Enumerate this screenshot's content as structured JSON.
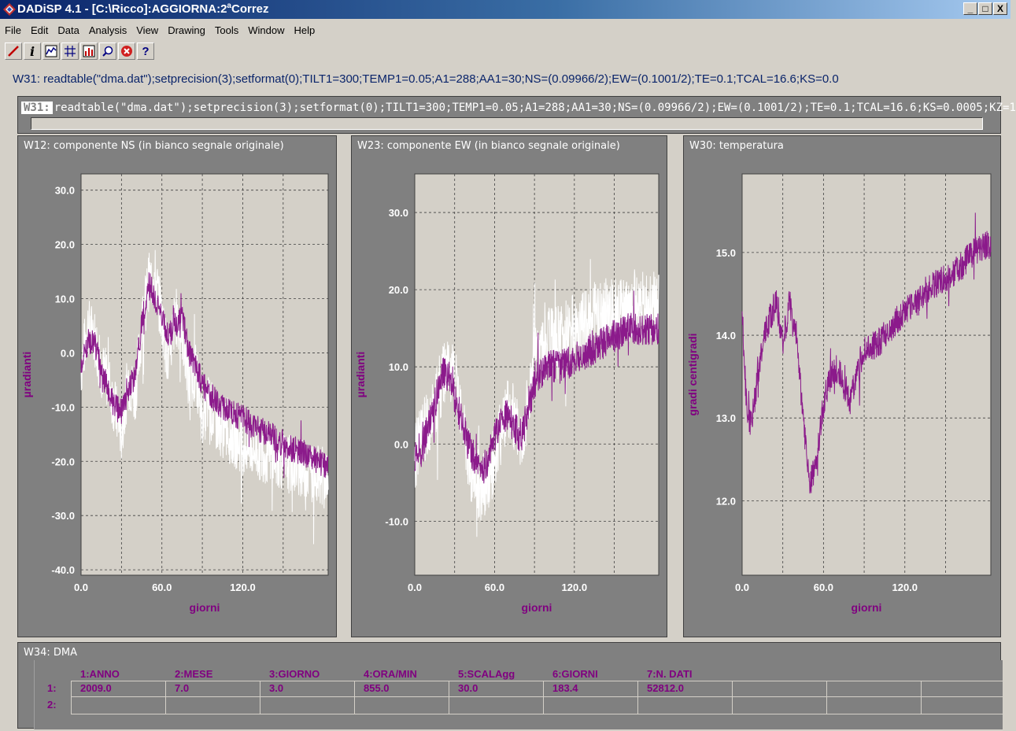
{
  "window": {
    "title": "DADiSP 4.1 - [C:\\Ricco]:AGGIORNA:2",
    "title_sup": "a",
    "title_suffix": "Correz",
    "btn_min": "_",
    "btn_max": "□",
    "btn_close": "X"
  },
  "menu": [
    "File",
    "Edit",
    "Data",
    "Analysis",
    "View",
    "Drawing",
    "Tools",
    "Window",
    "Help"
  ],
  "toolbar": {
    "icons": [
      "pencil-icon",
      "info-icon",
      "line-plot-icon",
      "grid-icon",
      "bar-chart-icon",
      "zoom-icon",
      "stop-icon",
      "help-icon"
    ],
    "info_glyph": "i",
    "help_glyph": "?"
  },
  "formula_bar": "W31: readtable(\"dma.dat\");setprecision(3);setformat(0);TILT1=300;TEMP1=0.05;A1=288;AA1=30;NS=(0.09966/2);EW=(0.1001/2);TE=0.1;TCAL=16.6;KS=0.0",
  "command": {
    "label": "W31:",
    "text": "readtable(\"dma.dat\");setprecision(3);setformat(0);TILT1=300;TEMP1=0.05;A1=288;AA1=30;NS=(0.09966/2);EW=(0.1001/2);TE=0.1;TCAL=16.6;KS=0.0005;KZ=1"
  },
  "colors": {
    "series_purple": "#8b1a8b",
    "series_white": "#ffffff",
    "plot_bg": "#d4d0c8",
    "label_purple": "#800080",
    "window_gray": "#808080"
  },
  "chart_data": [
    {
      "type": "line",
      "window_title": "W12: componente NS (in bianco segnale originale)",
      "xlabel": "giorni",
      "ylabel": "µradianti",
      "xlim": [
        0,
        183.4
      ],
      "ylim": [
        -41,
        33
      ],
      "x_ticks": [
        "0.0",
        "60.0",
        "120.0"
      ],
      "x_tick_values": [
        0,
        60,
        120
      ],
      "y_ticks": [
        "30.0",
        "20.0",
        "10.0",
        "0.0",
        "-10.0",
        "-20.0",
        "-30.0",
        "-40.0"
      ],
      "y_tick_values": [
        30,
        20,
        10,
        0,
        -10,
        -20,
        -30,
        -40
      ],
      "grid": true,
      "series": [
        {
          "color": "white",
          "noise": 5.5,
          "x": [
            0,
            5,
            10,
            15,
            20,
            25,
            30,
            35,
            40,
            45,
            50,
            55,
            60,
            65,
            70,
            75,
            80,
            85,
            90,
            95,
            100,
            110,
            120,
            130,
            140,
            150,
            160,
            170,
            183
          ],
          "y": [
            -3,
            5,
            3,
            -3,
            -5,
            -10,
            -15,
            -5,
            -8,
            5,
            13,
            14,
            6,
            -2,
            7,
            4,
            -6,
            -3,
            -12,
            -9,
            -13,
            -15,
            -17,
            -18,
            -19,
            -20,
            -21,
            -22,
            -23
          ]
        },
        {
          "color": "purple",
          "noise": 2.5,
          "x": [
            0,
            5,
            10,
            15,
            20,
            25,
            30,
            35,
            40,
            45,
            50,
            55,
            60,
            65,
            70,
            75,
            80,
            85,
            90,
            95,
            100,
            110,
            120,
            130,
            140,
            150,
            160,
            170,
            183
          ],
          "y": [
            -2,
            2,
            2,
            -3,
            -7,
            -10,
            -11,
            -7,
            -4,
            5,
            13,
            10,
            6,
            3,
            5,
            7,
            0,
            -2,
            -6,
            -7,
            -9,
            -11,
            -12,
            -14,
            -15,
            -17,
            -18,
            -19,
            -21
          ]
        }
      ]
    },
    {
      "type": "line",
      "window_title": "W23: componente EW (in bianco segnale originale)",
      "xlabel": "giorni",
      "ylabel": "µradianti",
      "xlim": [
        0,
        183.4
      ],
      "ylim": [
        -17,
        35
      ],
      "x_ticks": [
        "0.0",
        "60.0",
        "120.0"
      ],
      "x_tick_values": [
        0,
        60,
        120
      ],
      "y_ticks": [
        "30.0",
        "20.0",
        "10.0",
        "0.0",
        "-10.0"
      ],
      "y_tick_values": [
        30,
        20,
        10,
        0,
        -10
      ],
      "grid": true,
      "series": [
        {
          "color": "white",
          "noise": 4.5,
          "x": [
            0,
            5,
            10,
            15,
            20,
            25,
            30,
            35,
            40,
            45,
            50,
            55,
            60,
            65,
            70,
            75,
            80,
            85,
            90,
            100,
            110,
            120,
            130,
            140,
            150,
            160,
            170,
            183
          ],
          "y": [
            -2,
            1,
            3,
            5,
            8,
            10,
            8,
            5,
            -2,
            -4,
            -6,
            -4,
            -2,
            2,
            5,
            3,
            1,
            5,
            11,
            13,
            14,
            15,
            16,
            17,
            17,
            17,
            18,
            18
          ]
        },
        {
          "color": "purple",
          "noise": 2.2,
          "x": [
            0,
            5,
            10,
            15,
            20,
            25,
            30,
            35,
            40,
            45,
            50,
            55,
            60,
            65,
            70,
            75,
            80,
            85,
            90,
            100,
            110,
            120,
            130,
            140,
            150,
            160,
            170,
            183
          ],
          "y": [
            -2,
            -1,
            2,
            5,
            9,
            9,
            6,
            3,
            0,
            -2,
            -4,
            -2,
            1,
            3,
            4,
            2,
            1,
            4,
            8,
            10,
            10,
            11,
            12,
            13,
            14,
            15,
            15,
            15
          ]
        }
      ]
    },
    {
      "type": "line",
      "window_title": "W30: temperatura",
      "xlabel": "giorni",
      "ylabel": "gradi centigradi",
      "xlim": [
        0,
        183.4
      ],
      "ylim": [
        11.1,
        15.95
      ],
      "x_ticks": [
        "0.0",
        "60.0",
        "120.0"
      ],
      "x_tick_values": [
        0,
        60,
        120
      ],
      "y_ticks": [
        "15.0",
        "14.0",
        "13.0",
        "12.0"
      ],
      "y_tick_values": [
        15,
        14,
        13,
        12
      ],
      "grid": true,
      "series": [
        {
          "color": "purple",
          "noise": 0.18,
          "x": [
            0,
            3,
            6,
            10,
            15,
            20,
            25,
            30,
            35,
            40,
            45,
            50,
            55,
            60,
            65,
            70,
            75,
            80,
            85,
            90,
            100,
            110,
            120,
            130,
            140,
            150,
            160,
            170,
            183
          ],
          "y": [
            14.3,
            13.2,
            12.9,
            13.3,
            13.9,
            14.2,
            14.4,
            13.9,
            14.4,
            14.0,
            13.0,
            12.2,
            12.5,
            13.2,
            13.5,
            13.6,
            13.4,
            13.2,
            13.6,
            13.8,
            13.9,
            14.1,
            14.3,
            14.4,
            14.6,
            14.7,
            14.8,
            15.0,
            15.1
          ]
        }
      ]
    }
  ],
  "table": {
    "window_title": "W34: DMA",
    "columns": [
      "1:ANNO",
      "2:MESE",
      "3:GIORNO",
      "4:ORA/MIN",
      "5:SCALAgg",
      "6:GIORNI",
      "7:N. DATI"
    ],
    "rows": [
      {
        "label": "1:",
        "values": [
          "2009.0",
          "7.0",
          "3.0",
          "855.0",
          "30.0",
          "183.4",
          "52812.0"
        ]
      },
      {
        "label": "2:",
        "values": [
          "",
          "",
          "",
          "",
          "",
          "",
          ""
        ]
      }
    ]
  }
}
